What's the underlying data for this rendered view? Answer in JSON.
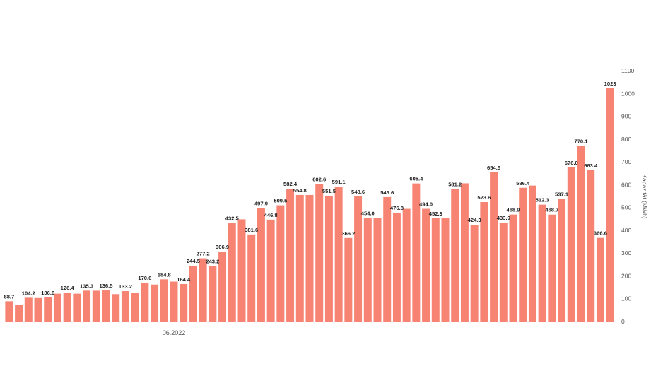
{
  "chart_data": {
    "type": "bar",
    "ylabel": "Kapazität (MWh)",
    "ylim": [
      0,
      1100
    ],
    "y_ticks": [
      0,
      100,
      200,
      300,
      400,
      500,
      600,
      700,
      800,
      900,
      1000,
      1100
    ],
    "y_axis_side": "right",
    "grid": false,
    "legend": "none",
    "bar_color": "#f78373",
    "x_tick_labels": [
      {
        "index": 17,
        "label": "06.2022"
      }
    ],
    "values": [
      88.7,
      72,
      104.2,
      103,
      106.0,
      122,
      126.4,
      122,
      135.3,
      135,
      136.5,
      120,
      133.2,
      124,
      170.6,
      162,
      184.8,
      175,
      164.4,
      244.5,
      277.2,
      243.2,
      306.9,
      432.5,
      448,
      381.6,
      497.9,
      446.8,
      509.5,
      582.4,
      554.8,
      554.8,
      602.6,
      551.5,
      591.1,
      366.2,
      548.6,
      454.0,
      454,
      545.6,
      476.8,
      494,
      605.4,
      494.0,
      452.3,
      452.3,
      581.2,
      606,
      424.3,
      523.6,
      654.5,
      433.9,
      468.9,
      586.4,
      596,
      512.3,
      468.7,
      537.1,
      676.0,
      770.1,
      663.4,
      366.6,
      1023
    ],
    "labels": [
      "88.7",
      "",
      "104.2",
      "",
      "106.0",
      "",
      "126.4",
      "",
      "135.3",
      "",
      "136.5",
      "",
      "133.2",
      "",
      "170.6",
      "",
      "184.8",
      "",
      "164.4",
      "244.5",
      "277.2",
      "243.2",
      "306.9",
      "432.5",
      "",
      "381.6",
      "497.9",
      "446.8",
      "509.5",
      "582.4",
      "554.8",
      "",
      "602.6",
      "551.5",
      "591.1",
      "366.2",
      "548.6",
      "454.0",
      "",
      "545.6",
      "476.8",
      "",
      "605.4",
      "494.0",
      "452.3",
      "",
      "581.2",
      "",
      "424.3",
      "523.6",
      "654.5",
      "433.9",
      "468.9",
      "586.4",
      "",
      "512.3",
      "468.7",
      "537.1",
      "676.0",
      "770.1",
      "663.4",
      "366.6",
      "1023"
    ]
  }
}
